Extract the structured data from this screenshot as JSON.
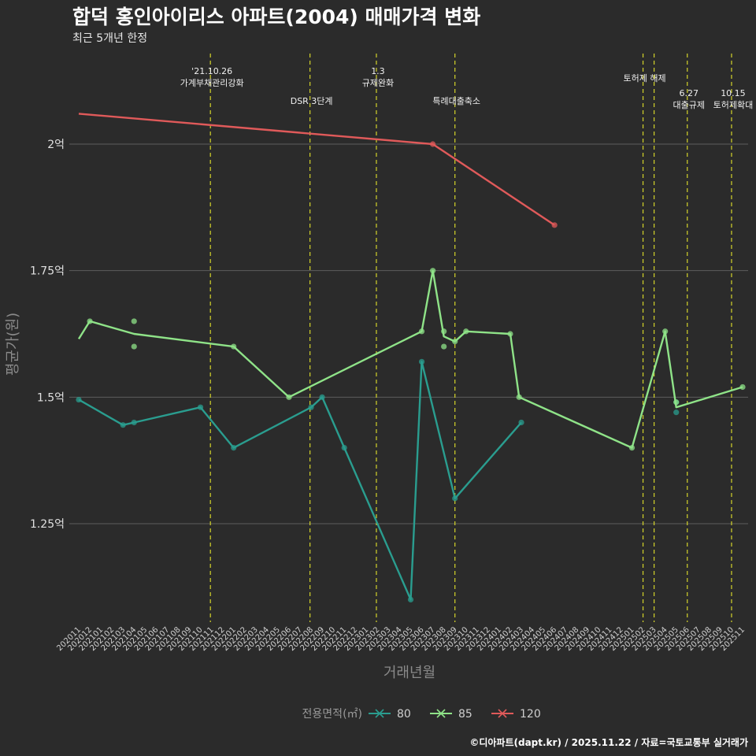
{
  "title": "합덕 홍인아이리스 아파트(2004) 매매가격 변화",
  "subtitle": "최근 5개년 한정",
  "caption": "©디아파트(dapt.kr) / 2025.11.22 / 자료=국토교통부 실거래가",
  "chart_data": {
    "type": "line",
    "xlabel": "거래년월",
    "ylabel": "평균가(원)",
    "y_ticks": [
      {
        "value": 1.25,
        "label": "1.25억"
      },
      {
        "value": 1.5,
        "label": "1.5억"
      },
      {
        "value": 1.75,
        "label": "1.75억"
      },
      {
        "value": 2.0,
        "label": "2억"
      }
    ],
    "ylim": [
      1.09,
      2.2
    ],
    "x_months": [
      "202011",
      "202012",
      "202101",
      "202102",
      "202103",
      "202104",
      "202105",
      "202106",
      "202107",
      "202108",
      "202109",
      "202110",
      "202111",
      "202112",
      "202201",
      "202202",
      "202203",
      "202204",
      "202205",
      "202206",
      "202207",
      "202208",
      "202209",
      "202210",
      "202211",
      "202212",
      "202301",
      "202302",
      "202303",
      "202304",
      "202305",
      "202306",
      "202307",
      "202308",
      "202309",
      "202310",
      "202311",
      "202312",
      "202401",
      "202402",
      "202403",
      "202404",
      "202405",
      "202406",
      "202407",
      "202408",
      "202409",
      "202410",
      "202411",
      "202412",
      "202501",
      "202502",
      "202503",
      "202504",
      "202505",
      "202506",
      "202507",
      "202508",
      "202509",
      "202510",
      "202511"
    ],
    "x_tick_labels": [
      "202011",
      "202012",
      "202101",
      "202102",
      "202103",
      "202104",
      "202105",
      "202106",
      "202107",
      "202108",
      "202109",
      "202110",
      "202111",
      "202112",
      "202201",
      "202202",
      "202203",
      "202204",
      "202205",
      "202206",
      "202207",
      "202208",
      "202209",
      "202210",
      "202211",
      "202212",
      "202301",
      "202302",
      "202303",
      "202304",
      "202305",
      "202306",
      "202307",
      "202308",
      "202309",
      "202310",
      "202311",
      "202312",
      "202401",
      "202402",
      "202403",
      "202404",
      "202405",
      "202406",
      "202407",
      "202408",
      "202409",
      "202410",
      "202411",
      "202412",
      "202501",
      "202502",
      "202503",
      "202504",
      "202505",
      "202506",
      "202507",
      "202508",
      "202509",
      "202510",
      "202511"
    ],
    "events": [
      {
        "month": 11.9,
        "lines": [
          "'21.10.26",
          "가계부채관리강화"
        ],
        "level": 1
      },
      {
        "month": 20.9,
        "lines": [
          "DSR 3단계"
        ],
        "level": 2
      },
      {
        "month": 26.9,
        "lines": [
          "1.3",
          "규제완화"
        ],
        "level": 1
      },
      {
        "month": 34.0,
        "lines": [
          "특례대출축소"
        ],
        "level": 2
      },
      {
        "month": 51.0,
        "lines": [
          "토허제 해제"
        ],
        "level": 0
      },
      {
        "month": 52.0,
        "lines": [],
        "level": 0
      },
      {
        "month": 55.0,
        "lines": [
          "6.27",
          "대출규제"
        ],
        "level": 1
      },
      {
        "month": 59.0,
        "lines": [
          "10.15",
          "토허제확대"
        ],
        "level": 1
      }
    ],
    "series": [
      {
        "name": "80",
        "color": "#2a9d8f",
        "line": [
          [
            0,
            1.495
          ],
          [
            4,
            1.445
          ],
          [
            5,
            1.45
          ],
          [
            11,
            1.48
          ],
          [
            14,
            1.4
          ],
          [
            21,
            1.48
          ],
          [
            22,
            1.5
          ],
          [
            24,
            1.4
          ],
          [
            30,
            1.1
          ],
          [
            31,
            1.57
          ],
          [
            34,
            1.3
          ],
          [
            40,
            1.45
          ]
        ],
        "points": [
          [
            0,
            1.495
          ],
          [
            4,
            1.445
          ],
          [
            5,
            1.45
          ],
          [
            11,
            1.48
          ],
          [
            14,
            1.4
          ],
          [
            21,
            1.48
          ],
          [
            22,
            1.5
          ],
          [
            24,
            1.4
          ],
          [
            30,
            1.1
          ],
          [
            31,
            1.57
          ],
          [
            34,
            1.3
          ],
          [
            40,
            1.45
          ],
          [
            54,
            1.49
          ],
          [
            54,
            1.47
          ]
        ]
      },
      {
        "name": "85",
        "color": "#8fe388",
        "line": [
          [
            0,
            1.615
          ],
          [
            1,
            1.65
          ],
          [
            5,
            1.625
          ],
          [
            14,
            1.6
          ],
          [
            19,
            1.5
          ],
          [
            31,
            1.63
          ],
          [
            32,
            1.75
          ],
          [
            33,
            1.62
          ],
          [
            34,
            1.61
          ],
          [
            35,
            1.63
          ],
          [
            39,
            1.625
          ],
          [
            39.8,
            1.5
          ],
          [
            50,
            1.4
          ],
          [
            53,
            1.63
          ],
          [
            54,
            1.48
          ],
          [
            60,
            1.52
          ]
        ],
        "points": [
          [
            1,
            1.65
          ],
          [
            5,
            1.65
          ],
          [
            5,
            1.6
          ],
          [
            14,
            1.6
          ],
          [
            19,
            1.5
          ],
          [
            31,
            1.63
          ],
          [
            32,
            1.75
          ],
          [
            33,
            1.63
          ],
          [
            33,
            1.6
          ],
          [
            34,
            1.61
          ],
          [
            35,
            1.63
          ],
          [
            39,
            1.625
          ],
          [
            39.8,
            1.5
          ],
          [
            50,
            1.4
          ],
          [
            53,
            1.63
          ],
          [
            54,
            1.49
          ],
          [
            60,
            1.52
          ]
        ]
      },
      {
        "name": "120",
        "color": "#e05a5a",
        "line": [
          [
            0,
            2.06
          ],
          [
            32,
            2.0
          ],
          [
            43,
            1.84
          ]
        ],
        "points": [
          [
            32,
            2.0
          ],
          [
            43,
            1.84
          ]
        ]
      }
    ],
    "legend": {
      "title": "전용면적(㎡)",
      "position": "bottom"
    }
  }
}
